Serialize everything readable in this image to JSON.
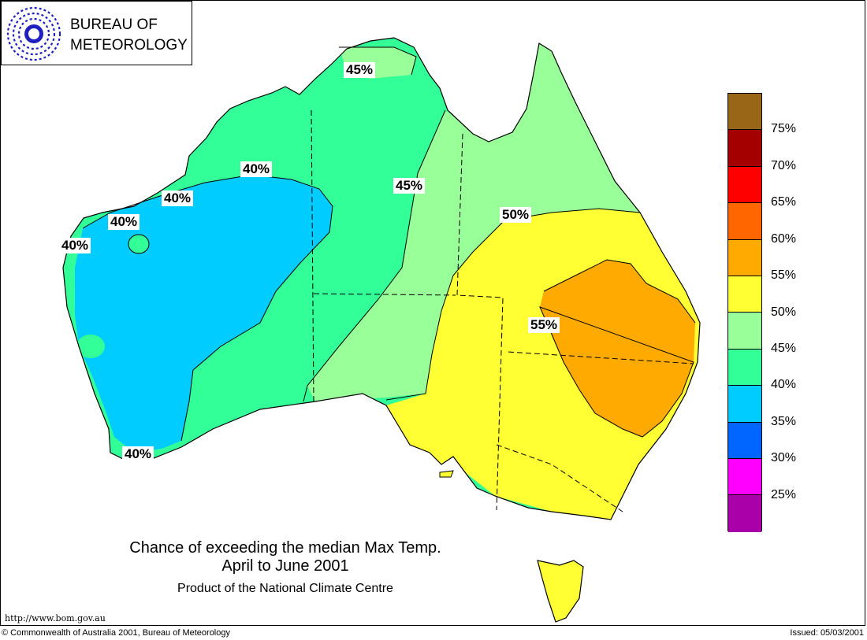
{
  "logo": {
    "line1": "BUREAU OF",
    "line2": "METEOROLOGY"
  },
  "title": {
    "main": "Chance of exceeding the median Max Temp.",
    "period": "April to June 2001",
    "product": "Product of the National Climate Centre"
  },
  "footer": {
    "url": "http://www.bom.gov.au",
    "copyright": "© Commonwealth of Australia 2001, Bureau of Meteorology",
    "issued": "Issued: 05/03/2001"
  },
  "legend": {
    "colors": [
      "#996618",
      "#a50000",
      "#ff0000",
      "#ff6600",
      "#ffaa00",
      "#ffff33",
      "#99ff99",
      "#33ff99",
      "#00ccff",
      "#0066ff",
      "#ff00ff",
      "#aa00aa"
    ],
    "labels": [
      "75%",
      "70%",
      "65%",
      "60%",
      "55%",
      "50%",
      "45%",
      "40%",
      "35%",
      "30%",
      "25%"
    ]
  },
  "contour_labels": {
    "north_45": "45%",
    "central_45": "45%",
    "west_40_a": "40%",
    "west_40_b": "40%",
    "west_40_c": "40%",
    "west_40_d": "40%",
    "southwest_40": "40%",
    "east_50": "50%",
    "east_55": "55%"
  }
}
